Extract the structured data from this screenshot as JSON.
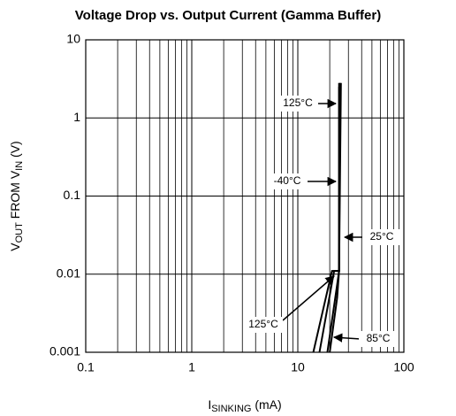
{
  "chart_data": {
    "type": "line",
    "title": "Voltage Drop vs. Output Current (Gamma Buffer)",
    "ylabel_parts": [
      {
        "text": "V"
      },
      {
        "text": "OUT",
        "sub": true
      },
      {
        "text": " FROM V"
      },
      {
        "text": "IN",
        "sub": true
      },
      {
        "text": " (V)"
      }
    ],
    "xlabel_parts": [
      {
        "text": "I"
      },
      {
        "text": "SINKING",
        "sub": true
      },
      {
        "text": " (mA)"
      }
    ],
    "xlog": true,
    "ylog": true,
    "xlim": [
      0.1,
      100
    ],
    "ylim": [
      0.001,
      10
    ],
    "xticks": [
      0.1,
      1,
      10,
      100
    ],
    "yticks": [
      0.001,
      0.01,
      0.1,
      1,
      10
    ],
    "grid": true,
    "minor_grid_x": true,
    "series": [
      {
        "name": "125°C",
        "color": "#000000",
        "x": [
          14,
          21,
          24.5,
          24.5
        ],
        "y": [
          0.001,
          0.011,
          0.011,
          2.8
        ]
      },
      {
        "name": "-40°C",
        "color": "#000000",
        "x": [
          16,
          22,
          24.5,
          24.5
        ],
        "y": [
          0.001,
          0.011,
          0.011,
          2.5
        ]
      },
      {
        "name": "25°C",
        "color": "#000000",
        "x": [
          19,
          23,
          24.5,
          25
        ],
        "y": [
          0.001,
          0.006,
          0.011,
          2.8
        ]
      },
      {
        "name": "85°C",
        "color": "#000000",
        "x": [
          20,
          23.5,
          24.5,
          25.5
        ],
        "y": [
          0.001,
          0.005,
          0.011,
          2.8
        ]
      }
    ],
    "annotations": [
      "125°C",
      "-40°C",
      "25°C",
      "125°C",
      "85°C"
    ]
  }
}
